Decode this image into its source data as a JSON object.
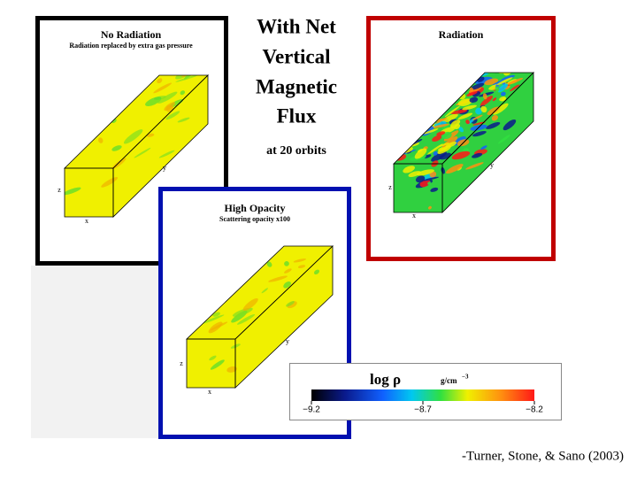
{
  "title_lines": [
    "With Net",
    "Vertical",
    "Magnetic",
    "Flux"
  ],
  "subtitle": "at 20 orbits",
  "panels": [
    {
      "title": "No Radiation",
      "subtitle": "Radiation replaced by extra gas pressure",
      "axes": {
        "x": "x",
        "y": "y",
        "z": "z"
      }
    },
    {
      "title": "Radiation",
      "axes": {
        "x": "x",
        "y": "y",
        "z": "z"
      }
    },
    {
      "title": "High Opacity",
      "subtitle": "Scattering opacity x100",
      "axes": {
        "x": "x",
        "y": "y",
        "z": "z"
      }
    }
  ],
  "colorbar": {
    "label": "log ρ",
    "unit": "g/cm",
    "unit_exponent": "−3",
    "lim": [
      -9.2,
      -8.2
    ],
    "ticks": [
      {
        "value": -9.2,
        "label": "−9.2"
      },
      {
        "value": -8.7,
        "label": "−8.7"
      },
      {
        "value": -8.2,
        "label": "−8.2"
      }
    ]
  },
  "citation": "-Turner, Stone, & Sano (2003)"
}
